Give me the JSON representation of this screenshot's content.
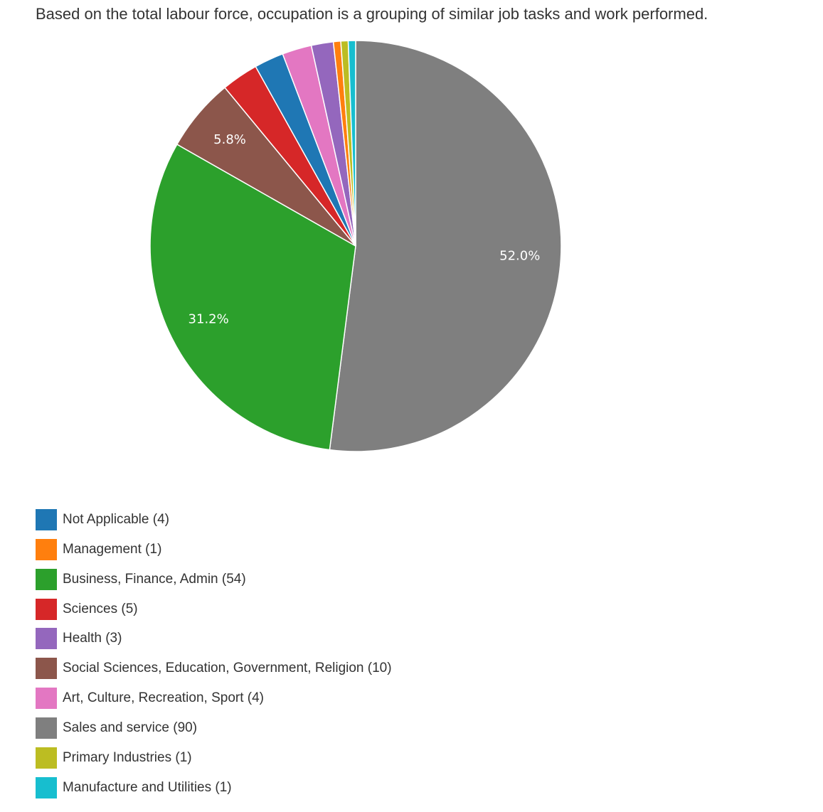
{
  "description": "Based on the total labour force, occupation is a grouping of similar job tasks and work performed.",
  "chart_data": {
    "type": "pie",
    "title": "",
    "categories": [
      "Not Applicable",
      "Management",
      "Business, Finance, Admin",
      "Sciences",
      "Health",
      "Social Sciences, Education, Government, Religion",
      "Art, Culture, Recreation, Sport",
      "Sales and service",
      "Primary Industries",
      "Manufacture and Utilities"
    ],
    "values": [
      4,
      1,
      54,
      5,
      3,
      10,
      4,
      90,
      1,
      1
    ],
    "colors": [
      "#1f77b4",
      "#ff7f0e",
      "#2ca02c",
      "#d62728",
      "#9467bd",
      "#8c564b",
      "#e377c2",
      "#7f7f7f",
      "#bcbd22",
      "#17becf"
    ],
    "slice_order": [
      7,
      2,
      5,
      3,
      0,
      6,
      4,
      1,
      8,
      9
    ],
    "direction": "clockwise",
    "slice_labels": [
      {
        "category": "Sales and service",
        "text": "52.0%"
      },
      {
        "category": "Business, Finance, Admin",
        "text": "31.2%"
      },
      {
        "category": "Social Sciences, Education, Government, Religion",
        "text": "5.8%"
      }
    ],
    "legend": {
      "position": "bottom-left",
      "entries": [
        "Not Applicable (4)",
        "Management (1)",
        "Business, Finance, Admin (54)",
        "Sciences (5)",
        "Health (3)",
        "Social Sciences, Education, Government, Religion (10)",
        "Art, Culture, Recreation, Sport (4)",
        "Sales and service (90)",
        "Primary Industries (1)",
        "Manufacture and Utilities (1)"
      ]
    }
  }
}
